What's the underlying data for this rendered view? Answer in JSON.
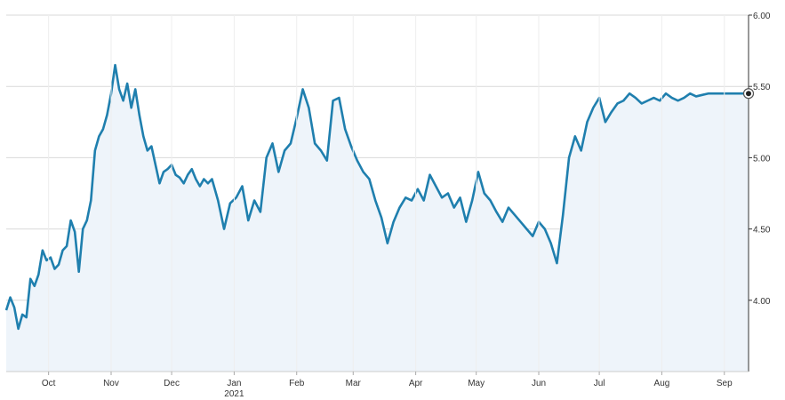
{
  "chart_data": {
    "type": "area",
    "title": "",
    "xlabel": "",
    "ylabel": "",
    "ylim": [
      3.5,
      6.0
    ],
    "grid": true,
    "colors": {
      "line": "#1f7fae",
      "fill": "#eef4fa",
      "grid": "#d9d9d9",
      "axis": "#333333"
    },
    "x_tick_labels": [
      "Oct",
      "Nov",
      "Dec",
      "Jan",
      "Feb",
      "Mar",
      "Apr",
      "May",
      "Jun",
      "Jul",
      "Aug",
      "Sep"
    ],
    "x_tick_dates": [
      "2020-10-01",
      "2020-11-01",
      "2020-12-01",
      "2021-01-01",
      "2021-02-01",
      "2021-03-01",
      "2021-04-01",
      "2021-05-01",
      "2021-06-01",
      "2021-07-01",
      "2021-08-01",
      "2021-09-01"
    ],
    "x_year_label": "2021",
    "x_range": [
      "2020-09-10",
      "2021-09-13"
    ],
    "y_ticks": [
      4.0,
      4.5,
      5.0,
      5.5,
      6.0
    ],
    "y_tick_labels": [
      "4.00",
      "4.50",
      "5.00",
      "5.50",
      "6.00"
    ],
    "y_axis_position": "right",
    "last_point_marker": true,
    "series": [
      {
        "x": [
          "2020-09-10",
          "2020-09-12",
          "2020-09-14",
          "2020-09-16",
          "2020-09-18",
          "2020-09-20",
          "2020-09-22",
          "2020-09-24",
          "2020-09-26",
          "2020-09-28",
          "2020-09-30",
          "2020-10-02",
          "2020-10-04",
          "2020-10-06",
          "2020-10-08",
          "2020-10-10",
          "2020-10-12",
          "2020-10-14",
          "2020-10-16",
          "2020-10-18",
          "2020-10-20",
          "2020-10-22",
          "2020-10-24",
          "2020-10-26",
          "2020-10-28",
          "2020-10-30",
          "2020-11-01",
          "2020-11-03",
          "2020-11-05",
          "2020-11-07",
          "2020-11-09",
          "2020-11-11",
          "2020-11-13",
          "2020-11-15",
          "2020-11-17",
          "2020-11-19",
          "2020-11-21",
          "2020-11-23",
          "2020-11-25",
          "2020-11-27",
          "2020-11-29",
          "2020-12-01",
          "2020-12-03",
          "2020-12-05",
          "2020-12-07",
          "2020-12-09",
          "2020-12-11",
          "2020-12-13",
          "2020-12-15",
          "2020-12-17",
          "2020-12-19",
          "2020-12-21",
          "2020-12-24",
          "2020-12-27",
          "2020-12-30",
          "2021-01-02",
          "2021-01-05",
          "2021-01-08",
          "2021-01-11",
          "2021-01-14",
          "2021-01-17",
          "2021-01-20",
          "2021-01-23",
          "2021-01-26",
          "2021-01-29",
          "2021-02-01",
          "2021-02-04",
          "2021-02-07",
          "2021-02-10",
          "2021-02-13",
          "2021-02-16",
          "2021-02-19",
          "2021-02-22",
          "2021-02-25",
          "2021-02-28",
          "2021-03-03",
          "2021-03-06",
          "2021-03-09",
          "2021-03-12",
          "2021-03-15",
          "2021-03-18",
          "2021-03-21",
          "2021-03-24",
          "2021-03-27",
          "2021-03-30",
          "2021-04-02",
          "2021-04-05",
          "2021-04-08",
          "2021-04-11",
          "2021-04-14",
          "2021-04-17",
          "2021-04-20",
          "2021-04-23",
          "2021-04-26",
          "2021-04-29",
          "2021-05-02",
          "2021-05-05",
          "2021-05-08",
          "2021-05-11",
          "2021-05-14",
          "2021-05-17",
          "2021-05-20",
          "2021-05-23",
          "2021-05-26",
          "2021-05-29",
          "2021-06-01",
          "2021-06-04",
          "2021-06-07",
          "2021-06-10",
          "2021-06-13",
          "2021-06-16",
          "2021-06-19",
          "2021-06-22",
          "2021-06-25",
          "2021-06-28",
          "2021-07-01",
          "2021-07-04",
          "2021-07-07",
          "2021-07-10",
          "2021-07-13",
          "2021-07-16",
          "2021-07-19",
          "2021-07-22",
          "2021-07-25",
          "2021-07-28",
          "2021-07-31",
          "2021-08-03",
          "2021-08-06",
          "2021-08-09",
          "2021-08-12",
          "2021-08-15",
          "2021-08-18",
          "2021-08-21",
          "2021-08-24",
          "2021-08-27",
          "2021-08-30",
          "2021-09-02",
          "2021-09-05",
          "2021-09-08",
          "2021-09-11",
          "2021-09-13"
        ],
        "values": [
          3.93,
          4.02,
          3.95,
          3.8,
          3.9,
          3.88,
          4.15,
          4.1,
          4.18,
          4.35,
          4.28,
          4.3,
          4.22,
          4.25,
          4.35,
          4.38,
          4.56,
          4.48,
          4.2,
          4.5,
          4.56,
          4.7,
          5.05,
          5.15,
          5.2,
          5.3,
          5.45,
          5.65,
          5.48,
          5.4,
          5.52,
          5.35,
          5.48,
          5.3,
          5.15,
          5.05,
          5.08,
          4.95,
          4.82,
          4.9,
          4.92,
          4.95,
          4.88,
          4.86,
          4.82,
          4.88,
          4.92,
          4.85,
          4.8,
          4.85,
          4.82,
          4.85,
          4.7,
          4.5,
          4.68,
          4.72,
          4.8,
          4.56,
          4.7,
          4.62,
          5.0,
          5.1,
          4.9,
          5.05,
          5.1,
          5.28,
          5.48,
          5.35,
          5.1,
          5.05,
          4.98,
          5.4,
          5.42,
          5.2,
          5.08,
          4.98,
          4.9,
          4.85,
          4.7,
          4.58,
          4.4,
          4.55,
          4.65,
          4.72,
          4.7,
          4.78,
          4.7,
          4.88,
          4.8,
          4.72,
          4.75,
          4.65,
          4.72,
          4.55,
          4.7,
          4.9,
          4.75,
          4.7,
          4.62,
          4.55,
          4.65,
          4.6,
          4.55,
          4.5,
          4.45,
          4.55,
          4.5,
          4.4,
          4.26,
          4.6,
          5.0,
          5.15,
          5.05,
          5.25,
          5.35,
          5.42,
          5.25,
          5.32,
          5.38,
          5.4,
          5.45,
          5.42,
          5.38,
          5.4,
          5.42,
          5.4,
          5.45,
          5.42,
          5.4,
          5.42,
          5.45,
          5.43,
          5.44,
          5.45,
          5.45,
          5.45,
          5.45,
          5.45,
          5.45,
          5.45,
          5.45
        ]
      }
    ]
  }
}
